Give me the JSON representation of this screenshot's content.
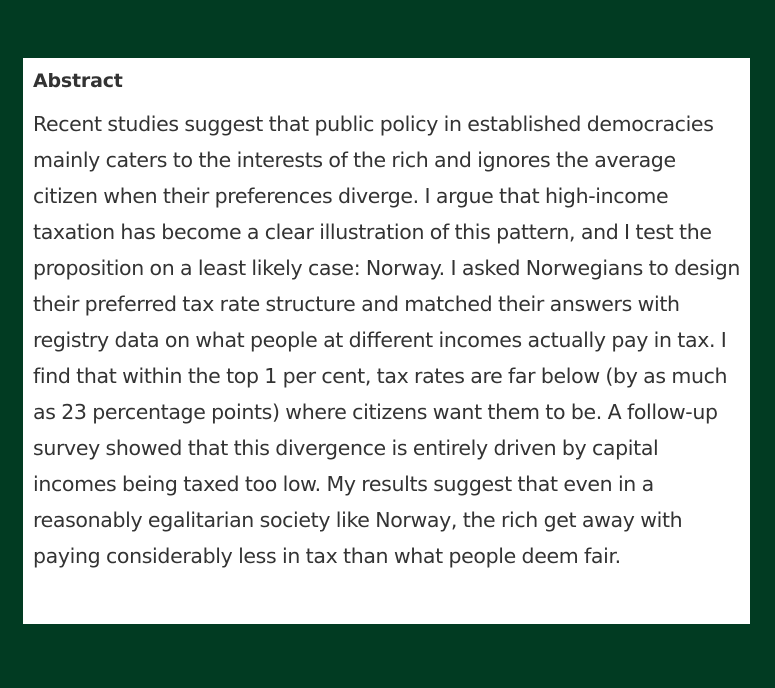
{
  "abstract": {
    "heading": "Abstract",
    "text": "Recent studies suggest that public policy in established democracies mainly caters to the interests of the rich and ignores the average citizen when their preferences diverge. I argue that high-income taxation has become a clear illustration of this pattern, and I test the proposition on a least likely case: Norway. I asked Norwegians to design their preferred tax rate structure and matched their answers with registry data on what people at different incomes actually pay in tax. I find that within the top 1 per cent, tax rates are far below (by as much as 23 percentage points) where citizens want them to be. A follow-up survey showed that this divergence is entirely driven by capital incomes being taxed too low. My results suggest that even in a reasonably egalitarian society like Norway, the rich get away with paying considerably less in tax than what people deem fair."
  },
  "colors": {
    "background": "#013b22",
    "card": "#ffffff",
    "text": "#333333"
  }
}
